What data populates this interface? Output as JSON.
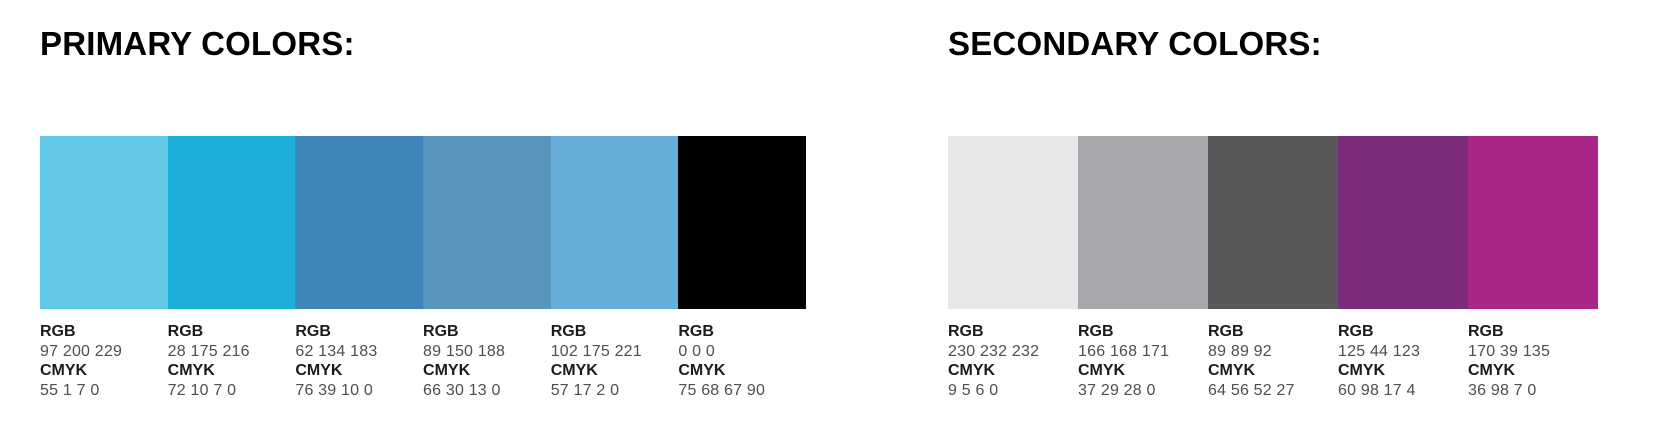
{
  "page": {
    "background": "#ffffff",
    "title_color": "#000000",
    "label_color": "#1d1b1a",
    "value_color": "#4e4e50"
  },
  "sections": [
    {
      "title": "PRIMARY COLORS:",
      "rgb_label": "RGB",
      "cmyk_label": "CMYK",
      "swatches": [
        {
          "hex": "#61c8e5",
          "rgb": "97 200 229",
          "cmyk": "55 1 7 0"
        },
        {
          "hex": "#1cafd8",
          "rgb": "28 175 216",
          "cmyk": "72 10 7 0"
        },
        {
          "hex": "#3e86b7",
          "rgb": "62 134 183",
          "cmyk": "76 39 10 0"
        },
        {
          "hex": "#5996bc",
          "rgb": "89 150 188",
          "cmyk": "66 30 13 0"
        },
        {
          "hex": "#66afdd",
          "rgb": "102 175 221",
          "cmyk": "57 17 2 0"
        },
        {
          "hex": "#000000",
          "rgb": "0 0 0",
          "cmyk": "75 68 67 90"
        }
      ]
    },
    {
      "title": "SECONDARY COLORS:",
      "rgb_label": "RGB",
      "cmyk_label": "CMYK",
      "swatches": [
        {
          "hex": "#e6e8e8",
          "rgb": "230 232 232",
          "cmyk": "9 5 6 0"
        },
        {
          "hex": "#a6a8ab",
          "rgb": "166 168 171",
          "cmyk": "37 29 28 0"
        },
        {
          "hex": "#59595c",
          "rgb": "89 89 92",
          "cmyk": "64 56 52 27"
        },
        {
          "hex": "#7d2c7b",
          "rgb": "125 44 123",
          "cmyk": "60 98 17 4"
        },
        {
          "hex": "#aa2787",
          "rgb": "170 39 135",
          "cmyk": "36 98 7 0"
        }
      ]
    }
  ]
}
